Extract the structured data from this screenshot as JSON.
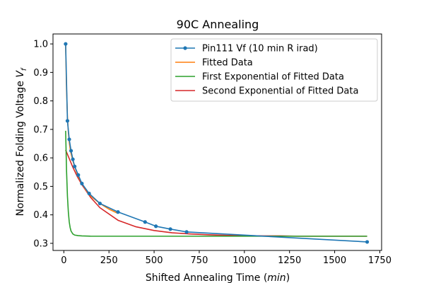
{
  "chart_data": {
    "type": "line",
    "title": "90C Annealing",
    "xlabel": "Shifted Annealing Time (",
    "xlabel_italic": "min",
    "xlabel_suffix": ")",
    "ylabel": "Normalized Folding Voltage ",
    "ylabel_italic": "V",
    "ylabel_sub": "f",
    "xlim": [
      -60,
      1760
    ],
    "ylim": [
      0.275,
      1.035
    ],
    "xticks": [
      0,
      250,
      500,
      750,
      1000,
      1250,
      1500,
      1750
    ],
    "yticks": [
      0.3,
      0.4,
      0.5,
      0.6,
      0.7,
      0.8,
      0.9,
      1.0
    ],
    "ytick_labels": [
      "0.3",
      "0.4",
      "0.5",
      "0.6",
      "0.7",
      "0.8",
      "0.9",
      "1.0"
    ],
    "grid": false,
    "legend_position": "top-right",
    "series": [
      {
        "name": "Pin111 Vf (10 min R irad)",
        "color": "#1f77b4",
        "marker": "circle",
        "x": [
          10,
          20,
          30,
          40,
          50,
          60,
          80,
          100,
          140,
          200,
          300,
          450,
          510,
          590,
          680,
          1680
        ],
        "y": [
          1.0,
          0.73,
          0.665,
          0.625,
          0.595,
          0.57,
          0.54,
          0.51,
          0.475,
          0.44,
          0.41,
          0.375,
          0.36,
          0.35,
          0.34,
          0.305
        ]
      },
      {
        "name": "Fitted Data",
        "color": "#ff7f0e",
        "x": [
          10,
          15,
          20,
          25,
          30,
          35,
          40,
          50,
          60,
          70,
          80,
          100,
          120,
          140,
          160,
          200,
          250,
          300
        ],
        "y": [
          0.995,
          0.84,
          0.745,
          0.69,
          0.655,
          0.632,
          0.615,
          0.59,
          0.57,
          0.552,
          0.535,
          0.51,
          0.49,
          0.473,
          0.46,
          0.44,
          0.42,
          0.405
        ]
      },
      {
        "name": "First Exponential of Fitted Data",
        "color": "#2ca02c",
        "x": [
          10,
          15,
          20,
          25,
          30,
          35,
          40,
          50,
          60,
          80,
          100,
          150,
          250,
          500,
          1000,
          1500,
          1680
        ],
        "y": [
          0.695,
          0.555,
          0.465,
          0.41,
          0.375,
          0.355,
          0.343,
          0.333,
          0.329,
          0.327,
          0.326,
          0.325,
          0.325,
          0.325,
          0.325,
          0.325,
          0.325
        ]
      },
      {
        "name": "Second Exponential of Fitted Data",
        "color": "#d62728",
        "x": [
          10,
          25,
          50,
          75,
          100,
          150,
          200,
          300,
          400,
          500,
          600,
          700,
          800,
          900,
          1000,
          1100,
          1200,
          1300,
          1400,
          1500,
          1680
        ],
        "y": [
          0.628,
          0.605,
          0.567,
          0.534,
          0.506,
          0.46,
          0.425,
          0.381,
          0.358,
          0.345,
          0.337,
          0.333,
          0.33,
          0.328,
          0.327,
          0.326,
          0.326,
          0.325,
          0.325,
          0.325,
          0.325
        ]
      }
    ]
  }
}
